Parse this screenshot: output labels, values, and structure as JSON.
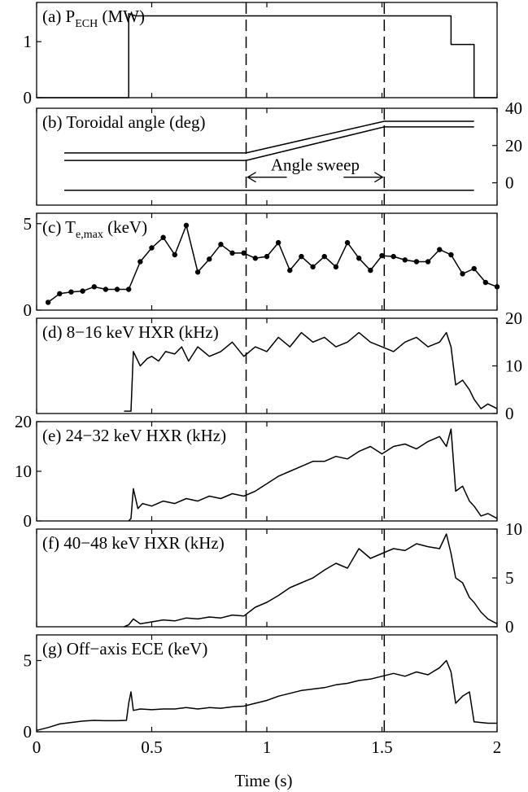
{
  "chart_data": [
    {
      "type": "line",
      "label": "(a) P",
      "label_sub": "ECH",
      "label_rest": " (MW)",
      "ylim": [
        0,
        1.7
      ],
      "yticks": [
        0,
        1
      ],
      "ytick_side": "left",
      "series": [
        {
          "x": [
            0,
            0.4,
            0.4,
            0.43,
            1.8,
            1.8,
            1.9,
            1.9,
            2.0
          ],
          "y": [
            0,
            0,
            1.5,
            1.46,
            1.46,
            0.95,
            0.95,
            0,
            0
          ]
        }
      ]
    },
    {
      "type": "line",
      "label": "(b) Toroidal angle (deg)",
      "ylim": [
        -12,
        40
      ],
      "yticks": [
        0,
        20,
        40
      ],
      "ytick_side": "right",
      "annotation": "Angle sweep",
      "annotation_arrow": {
        "x1": 0.91,
        "x2": 1.51,
        "y": 3
      },
      "series": [
        {
          "x": [
            0.12,
            0.91,
            1.51,
            1.9
          ],
          "y": [
            16,
            16,
            33,
            33
          ]
        },
        {
          "x": [
            0.12,
            0.91,
            1.51,
            1.9
          ],
          "y": [
            12,
            12,
            30,
            30
          ]
        },
        {
          "x": [
            0.12,
            1.9
          ],
          "y": [
            -4,
            -4
          ]
        }
      ]
    },
    {
      "type": "line",
      "label": "(c) T",
      "label_sub": "e,max",
      "label_rest": " (keV)",
      "ylim": [
        0,
        5.6
      ],
      "yticks": [
        0,
        5
      ],
      "ytick_side": "left",
      "markers": true,
      "series": [
        {
          "x": [
            0.05,
            0.1,
            0.15,
            0.2,
            0.25,
            0.3,
            0.35,
            0.4,
            0.45,
            0.5,
            0.55,
            0.6,
            0.65,
            0.7,
            0.75,
            0.8,
            0.85,
            0.9,
            0.95,
            1.0,
            1.05,
            1.1,
            1.15,
            1.2,
            1.25,
            1.3,
            1.35,
            1.4,
            1.45,
            1.5,
            1.55,
            1.6,
            1.65,
            1.7,
            1.75,
            1.8,
            1.85,
            1.9,
            1.95,
            2.0
          ],
          "y": [
            0.45,
            0.95,
            1.05,
            1.1,
            1.35,
            1.2,
            1.2,
            1.2,
            2.8,
            3.6,
            4.2,
            3.2,
            4.9,
            2.2,
            2.95,
            3.8,
            3.3,
            3.3,
            3.0,
            3.1,
            3.9,
            2.3,
            3.1,
            2.5,
            3.1,
            2.5,
            3.9,
            3.0,
            2.3,
            3.15,
            3.1,
            2.9,
            2.8,
            2.8,
            3.5,
            3.2,
            2.1,
            2.4,
            1.6,
            1.35
          ]
        }
      ]
    },
    {
      "type": "line",
      "label": "(d) 8−16 keV HXR (kHz)",
      "ylim": [
        0,
        20
      ],
      "yticks": [
        0,
        10,
        20
      ],
      "ytick_side": "right",
      "series": [
        {
          "x": [
            0.38,
            0.41,
            0.42,
            0.45,
            0.48,
            0.5,
            0.53,
            0.56,
            0.6,
            0.63,
            0.66,
            0.7,
            0.75,
            0.8,
            0.85,
            0.9,
            0.95,
            1.0,
            1.05,
            1.1,
            1.15,
            1.2,
            1.25,
            1.3,
            1.35,
            1.4,
            1.45,
            1.5,
            1.55,
            1.6,
            1.65,
            1.7,
            1.75,
            1.78,
            1.8,
            1.82,
            1.85,
            1.88,
            1.9,
            1.93,
            1.96,
            2.0
          ],
          "y": [
            0.5,
            0.5,
            13,
            10,
            11.5,
            12,
            11,
            13,
            12.5,
            14,
            11,
            14,
            12,
            13,
            15,
            12,
            14,
            13,
            16,
            14,
            17,
            15,
            16,
            14,
            15,
            17,
            15,
            14,
            13,
            15,
            16,
            14,
            15,
            17,
            14,
            6,
            7,
            5,
            3,
            1,
            2,
            1
          ]
        }
      ]
    },
    {
      "type": "line",
      "label": "(e) 24−32 keV HXR (kHz)",
      "ylim": [
        0,
        20
      ],
      "yticks": [
        0,
        10,
        20
      ],
      "ytick_side": "left",
      "series": [
        {
          "x": [
            0.4,
            0.41,
            0.42,
            0.44,
            0.46,
            0.5,
            0.55,
            0.6,
            0.65,
            0.7,
            0.75,
            0.8,
            0.85,
            0.9,
            0.95,
            1.0,
            1.05,
            1.1,
            1.15,
            1.2,
            1.25,
            1.3,
            1.35,
            1.4,
            1.45,
            1.5,
            1.55,
            1.6,
            1.65,
            1.7,
            1.75,
            1.78,
            1.8,
            1.82,
            1.85,
            1.88,
            1.9,
            1.93,
            1.96,
            2.0
          ],
          "y": [
            0,
            0.5,
            6.5,
            2.5,
            3.5,
            3,
            4,
            3.5,
            4.5,
            4,
            5,
            4.5,
            5.5,
            5,
            6,
            7.5,
            9,
            10,
            11,
            12,
            12,
            13,
            12.5,
            14,
            15,
            13.5,
            15,
            15.5,
            14.5,
            16,
            17,
            15,
            18.5,
            6,
            7,
            4,
            3,
            1,
            1.5,
            0.5
          ]
        }
      ]
    },
    {
      "type": "line",
      "label": "(f) 40−48 keV HXR (kHz)",
      "ylim": [
        0,
        10
      ],
      "yticks": [
        0,
        5,
        10
      ],
      "ytick_side": "right",
      "series": [
        {
          "x": [
            0.38,
            0.4,
            0.42,
            0.45,
            0.5,
            0.55,
            0.6,
            0.65,
            0.7,
            0.75,
            0.8,
            0.85,
            0.9,
            0.95,
            1.0,
            1.05,
            1.1,
            1.15,
            1.2,
            1.25,
            1.3,
            1.35,
            1.4,
            1.45,
            1.5,
            1.55,
            1.6,
            1.65,
            1.7,
            1.75,
            1.78,
            1.8,
            1.82,
            1.85,
            1.88,
            1.9,
            1.93,
            1.96,
            2.0
          ],
          "y": [
            0,
            0.2,
            0.8,
            0.3,
            0.5,
            0.7,
            0.6,
            0.9,
            0.8,
            1.0,
            0.9,
            1.2,
            1.1,
            2.0,
            2.5,
            3.2,
            4.0,
            4.5,
            5.0,
            5.8,
            6.5,
            6.0,
            8.0,
            7.0,
            7.5,
            8.0,
            7.8,
            8.5,
            8.2,
            8.0,
            9.5,
            7.5,
            5.0,
            4.5,
            3.0,
            2.5,
            1.5,
            0.8,
            0.3
          ]
        }
      ]
    },
    {
      "type": "line",
      "label": "(g) Off−axis ECE (keV)",
      "ylim": [
        0,
        6.8
      ],
      "yticks": [
        0,
        5
      ],
      "ytick_side": "left",
      "series": [
        {
          "x": [
            0.0,
            0.05,
            0.1,
            0.15,
            0.2,
            0.25,
            0.3,
            0.35,
            0.39,
            0.4,
            0.41,
            0.42,
            0.45,
            0.5,
            0.55,
            0.6,
            0.65,
            0.7,
            0.75,
            0.8,
            0.85,
            0.9,
            0.95,
            1.0,
            1.05,
            1.1,
            1.15,
            1.2,
            1.25,
            1.3,
            1.35,
            1.4,
            1.45,
            1.5,
            1.55,
            1.6,
            1.65,
            1.7,
            1.75,
            1.78,
            1.8,
            1.82,
            1.85,
            1.88,
            1.9,
            1.93,
            1.96,
            2.0
          ],
          "y": [
            0.1,
            0.3,
            0.55,
            0.65,
            0.75,
            0.8,
            0.78,
            0.78,
            0.8,
            2.0,
            2.8,
            1.5,
            1.6,
            1.55,
            1.6,
            1.6,
            1.7,
            1.6,
            1.7,
            1.65,
            1.75,
            1.8,
            2.0,
            2.2,
            2.5,
            2.7,
            2.9,
            3.0,
            3.1,
            3.3,
            3.4,
            3.6,
            3.7,
            3.9,
            4.1,
            3.9,
            4.2,
            4.0,
            4.5,
            5.0,
            4.2,
            2.0,
            2.5,
            2.8,
            0.7,
            0.65,
            0.6,
            0.6
          ]
        }
      ]
    }
  ],
  "shared": {
    "xlim": [
      0,
      2
    ],
    "xticks": [
      0,
      0.5,
      1,
      1.5,
      2
    ],
    "xtick_labels": [
      "0",
      "0.5",
      "1",
      "1.5",
      "2"
    ],
    "xlabel": "Time (s)",
    "vlines": [
      0.91,
      1.51
    ]
  }
}
